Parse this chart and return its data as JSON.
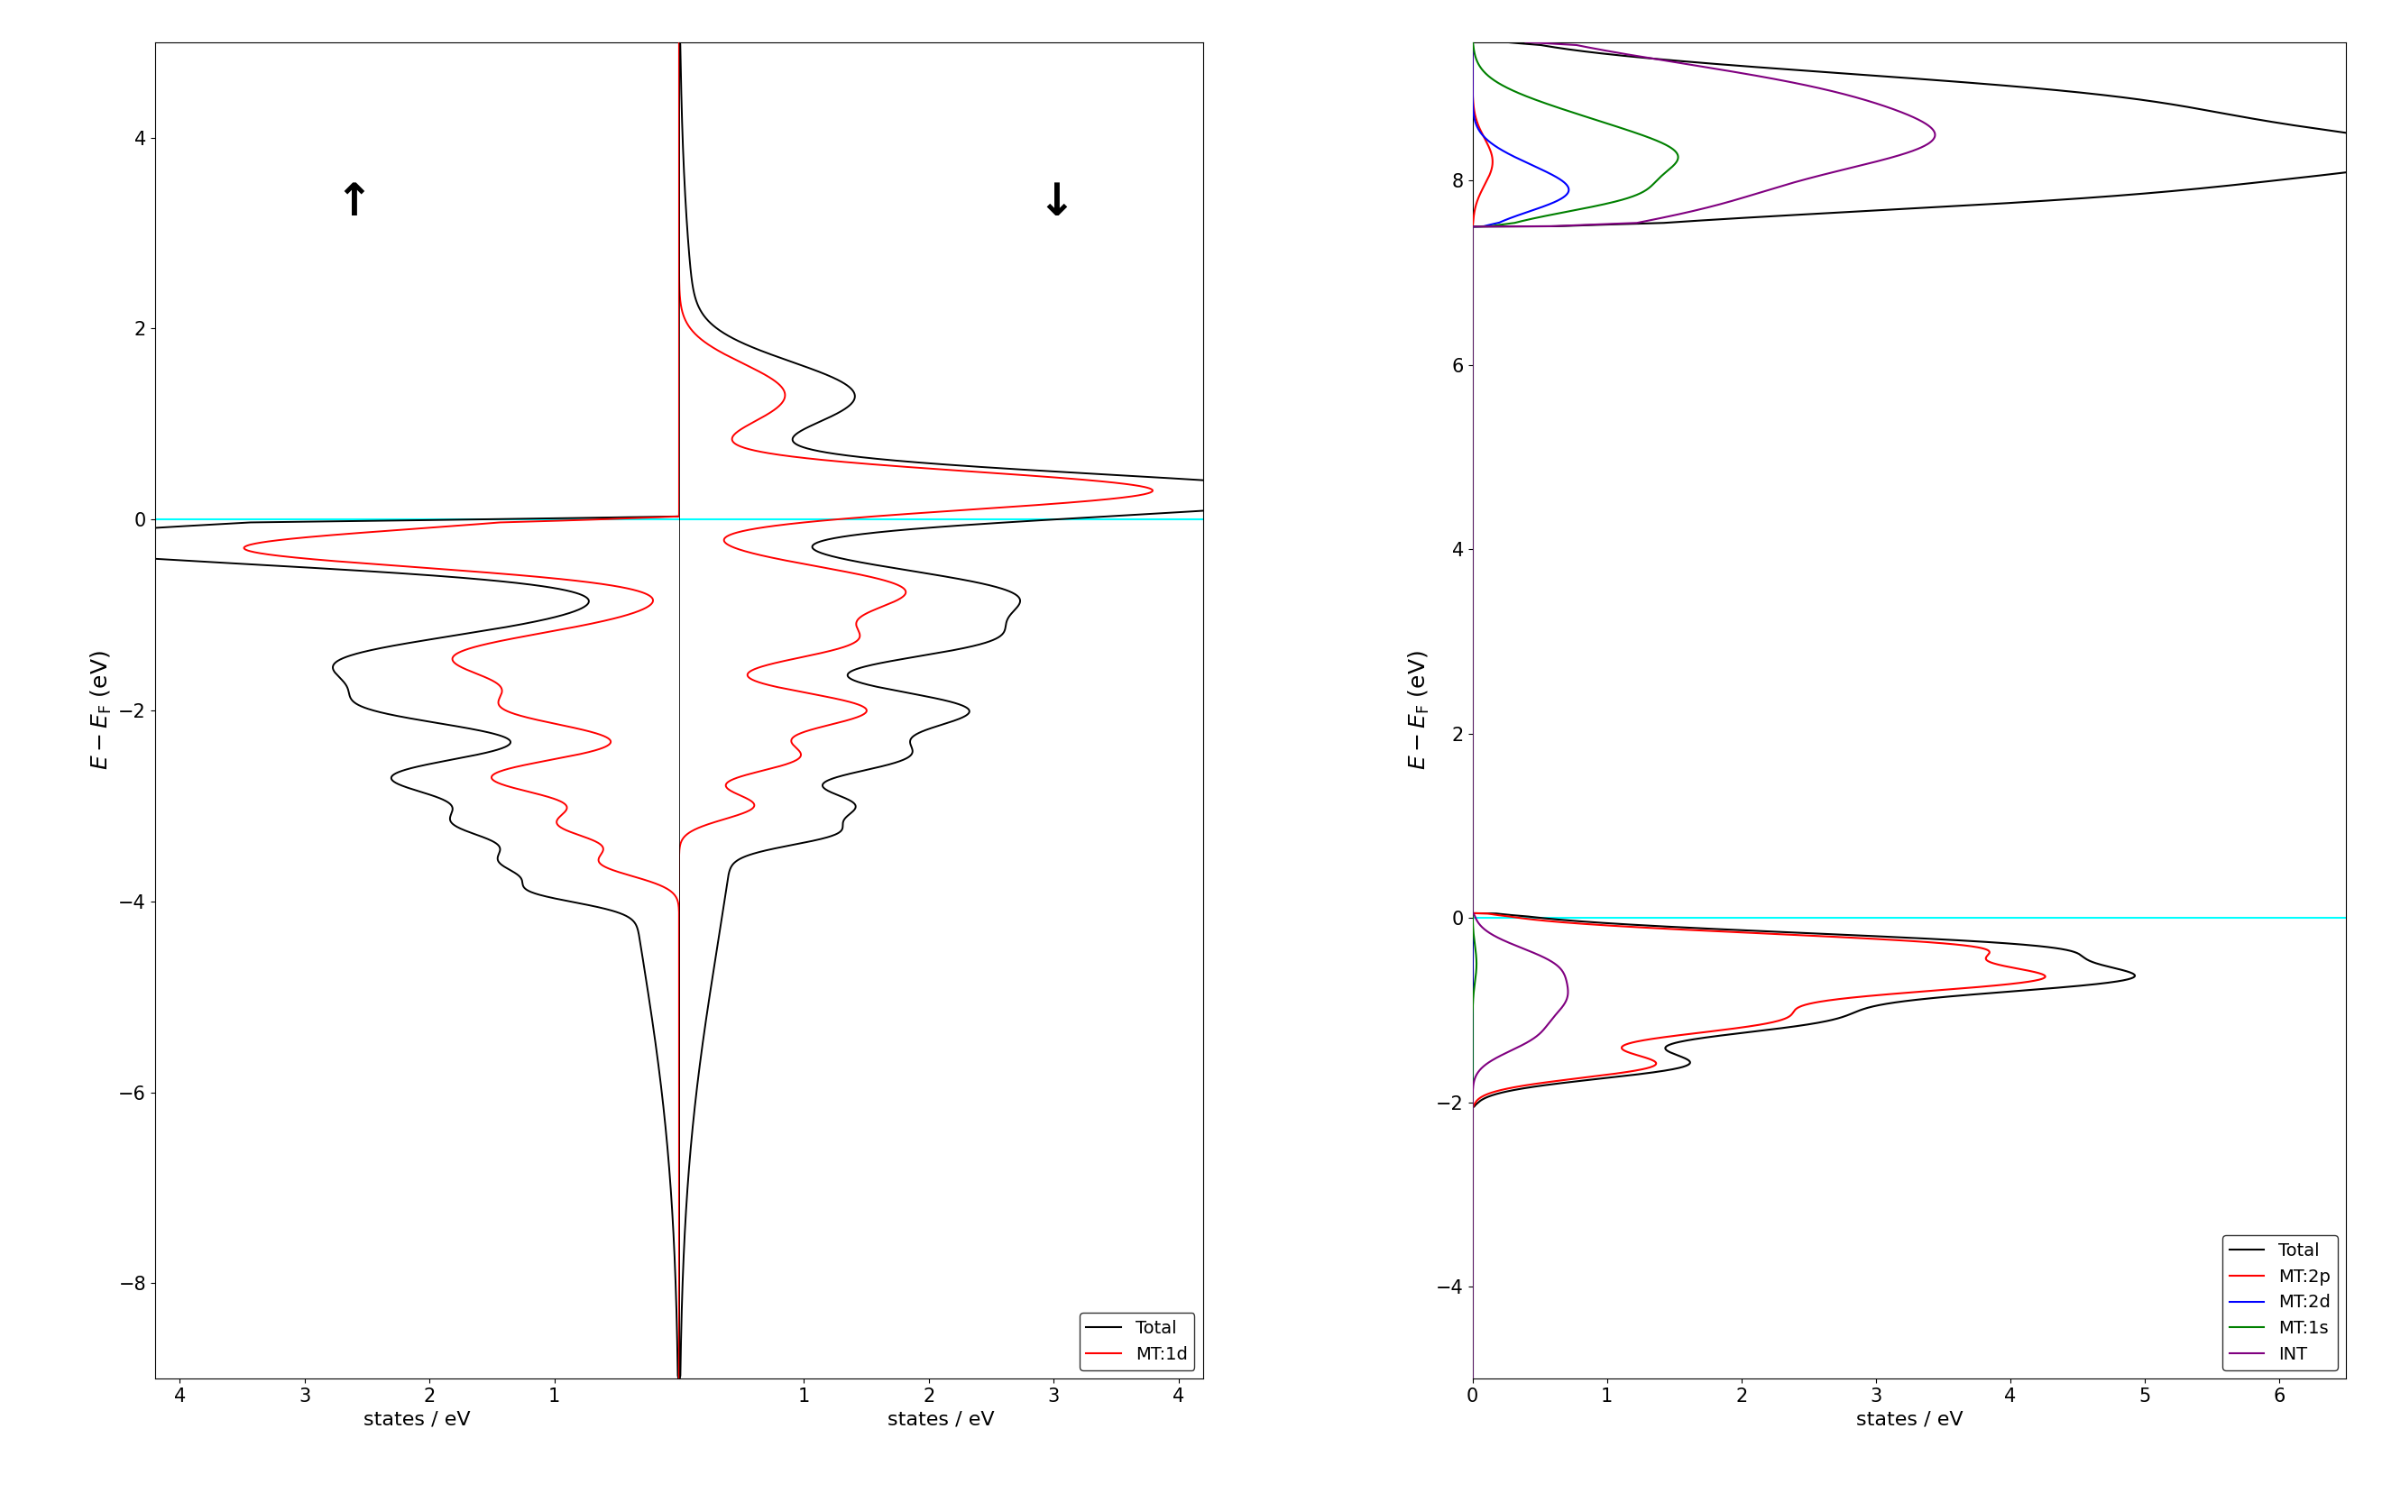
{
  "co_ylim": [
    -9.0,
    5.0
  ],
  "co_yticks": [
    -8,
    -6,
    -4,
    -2,
    0,
    2,
    4
  ],
  "co_spin_up_xlim": [
    4.2,
    0.0
  ],
  "co_spin_down_xlim": [
    0.0,
    4.2
  ],
  "co_xticks_up": [
    4,
    3,
    2,
    1
  ],
  "co_xticks_down": [
    1,
    2,
    3,
    4
  ],
  "nacl_ylim": [
    -5.0,
    9.5
  ],
  "nacl_yticks": [
    -4,
    -2,
    0,
    2,
    4,
    6,
    8
  ],
  "nacl_xlim": [
    0.0,
    6.5
  ],
  "nacl_xticks": [
    0,
    1,
    2,
    3,
    4,
    5,
    6
  ],
  "ylabel": "E - E_F (eV)",
  "xlabel": "states / eV",
  "co_legend_labels": [
    "Total",
    "MT:1d"
  ],
  "co_legend_colors": [
    "black",
    "red"
  ],
  "nacl_legend_labels": [
    "Total",
    "MT:2p",
    "MT:2d",
    "MT:1s",
    "INT"
  ],
  "nacl_legend_colors": [
    "black",
    "red",
    "blue",
    "green",
    "purple"
  ],
  "fermi_color": "cyan",
  "background_color": "white"
}
